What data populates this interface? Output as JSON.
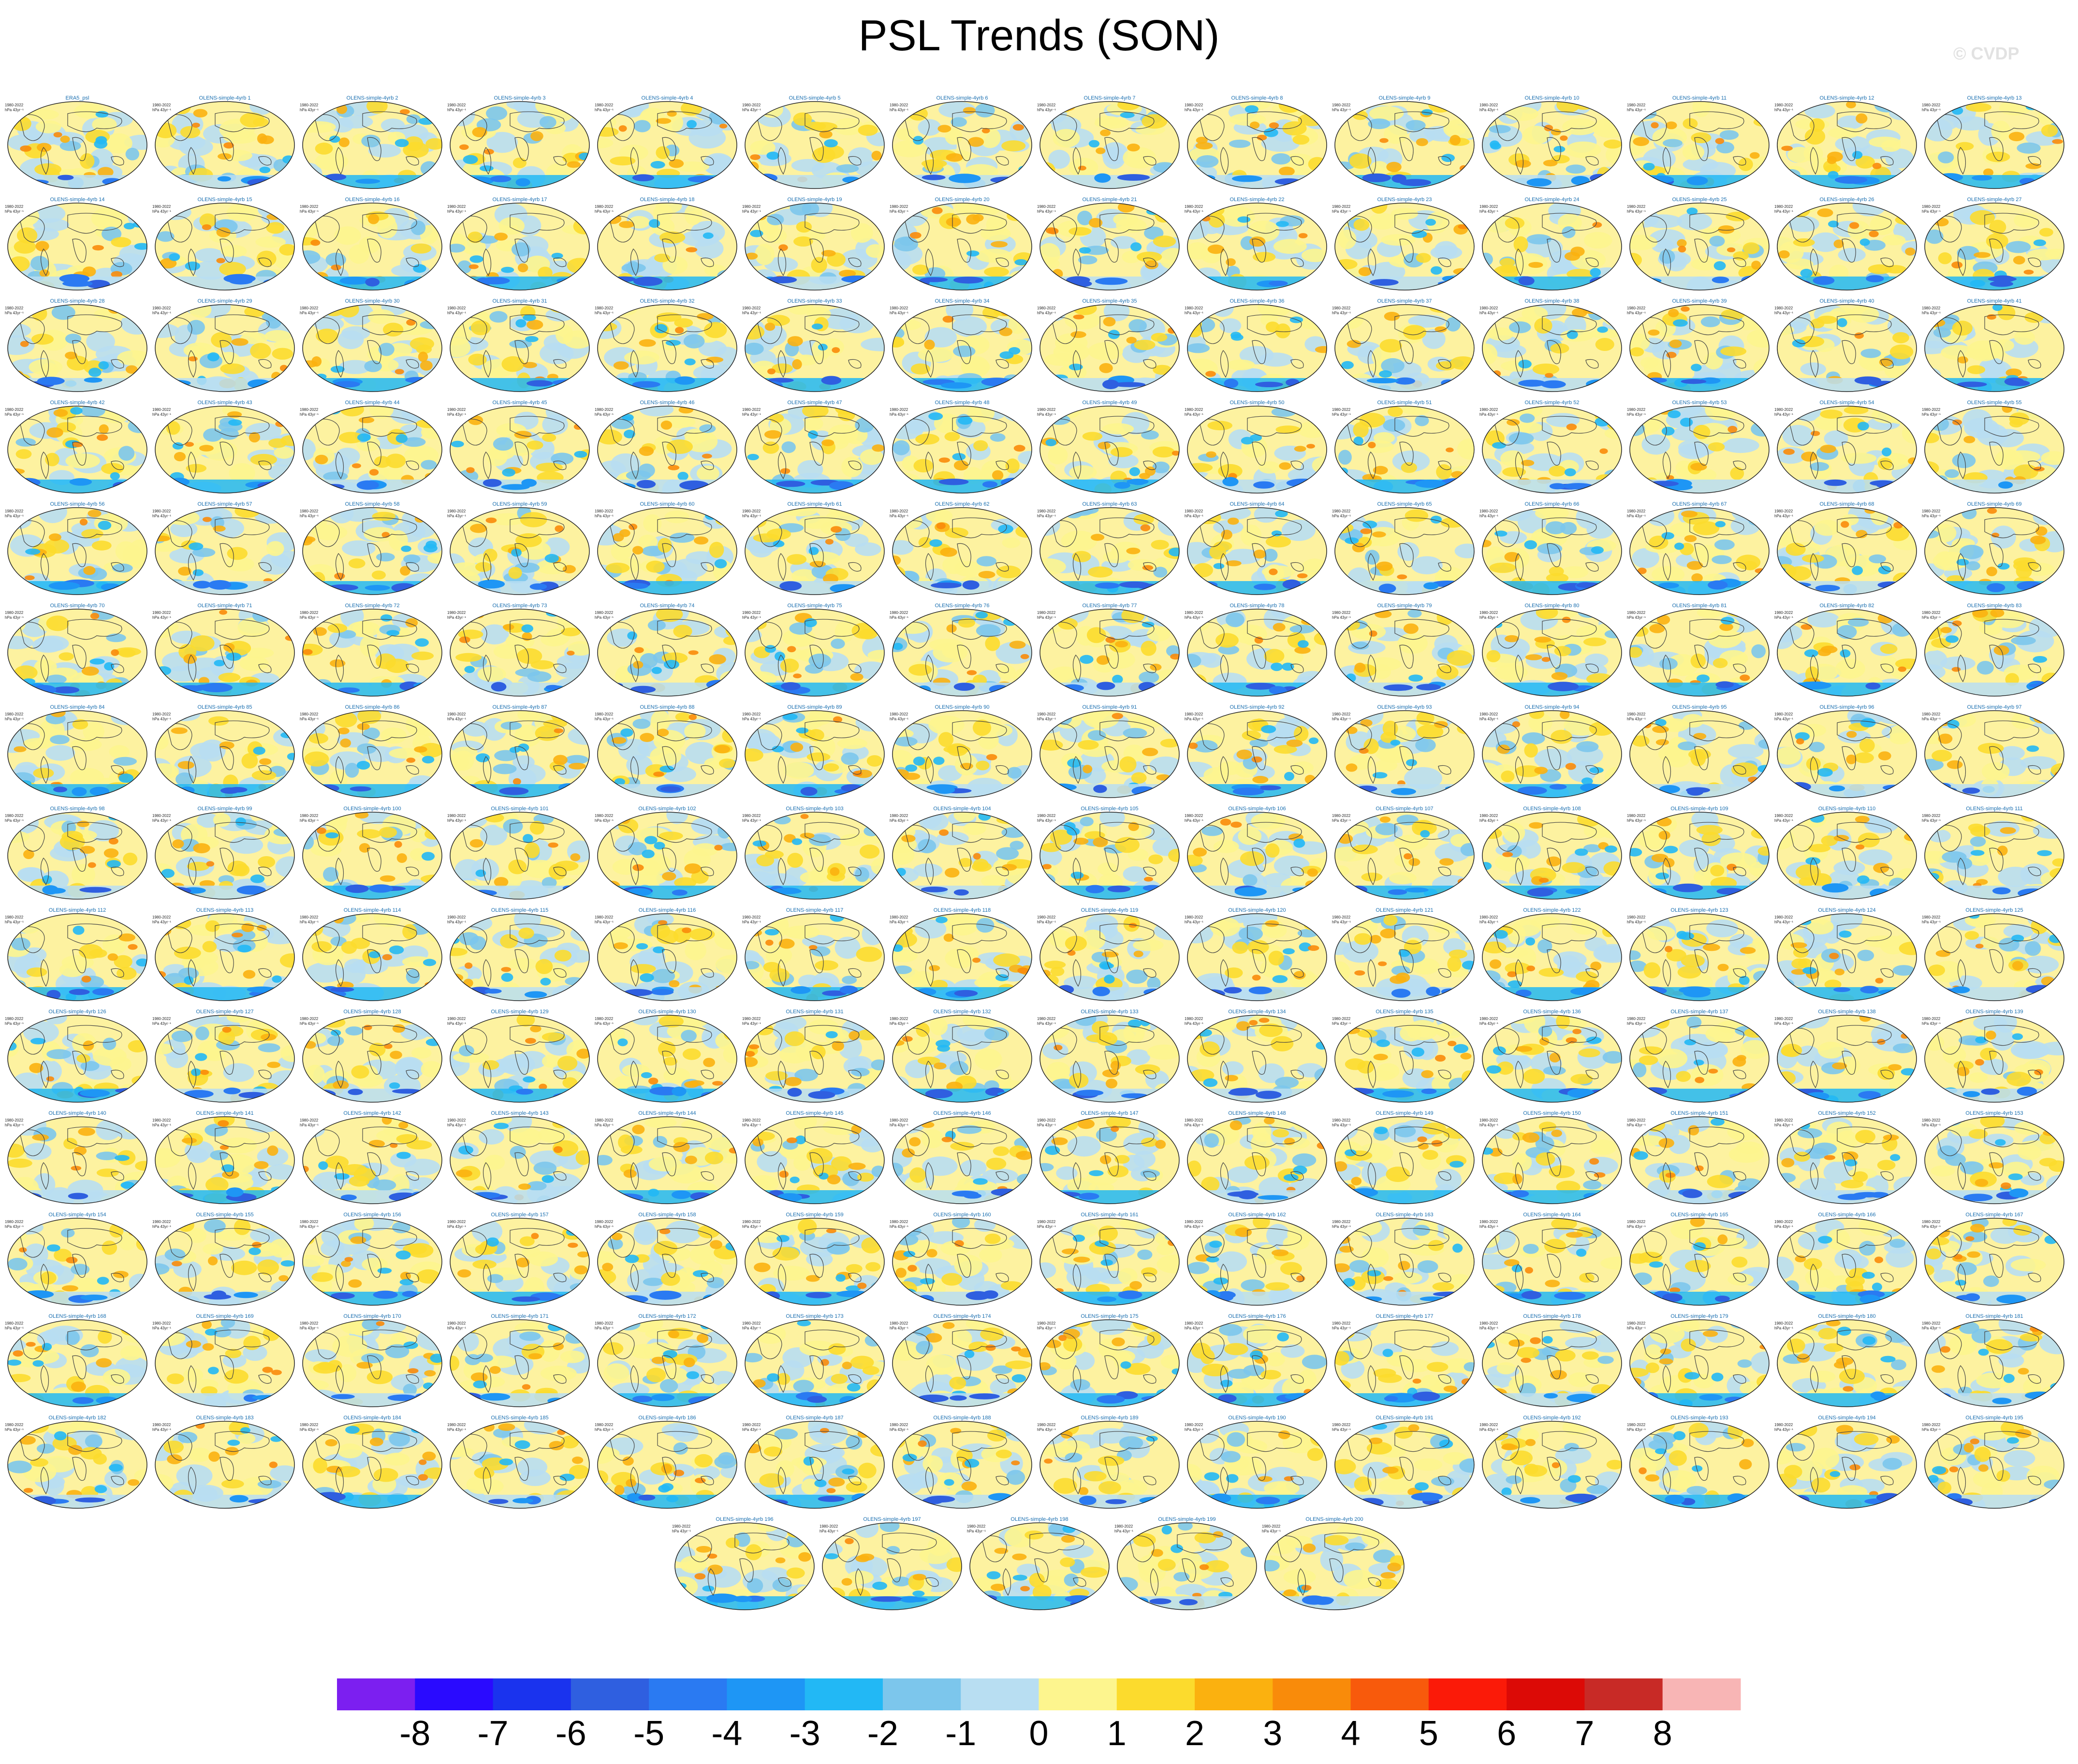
{
  "title": "PSL Trends (SON)",
  "watermark": "© CVDP",
  "chart_data": {
    "type": "heatmap",
    "title": "PSL Trends (SON)",
    "panel_count": 201,
    "panel_period": "1980-2022",
    "panel_units": "hPa 43yr⁻¹",
    "panels": [
      "ERA5_psl",
      "OLENS-simple-4yrb 1",
      "OLENS-simple-4yrb 2",
      "OLENS-simple-4yrb 3",
      "OLENS-simple-4yrb 4",
      "OLENS-simple-4yrb 5",
      "OLENS-simple-4yrb 6",
      "OLENS-simple-4yrb 7",
      "OLENS-simple-4yrb 8",
      "OLENS-simple-4yrb 9",
      "OLENS-simple-4yrb 10",
      "OLENS-simple-4yrb 11",
      "OLENS-simple-4yrb 12",
      "OLENS-simple-4yrb 13",
      "OLENS-simple-4yrb 14",
      "OLENS-simple-4yrb 15",
      "OLENS-simple-4yrb 16",
      "OLENS-simple-4yrb 17",
      "OLENS-simple-4yrb 18",
      "OLENS-simple-4yrb 19",
      "OLENS-simple-4yrb 20",
      "OLENS-simple-4yrb 21",
      "OLENS-simple-4yrb 22",
      "OLENS-simple-4yrb 23",
      "OLENS-simple-4yrb 24",
      "OLENS-simple-4yrb 25",
      "OLENS-simple-4yrb 26",
      "OLENS-simple-4yrb 27",
      "OLENS-simple-4yrb 28",
      "OLENS-simple-4yrb 29",
      "OLENS-simple-4yrb 30",
      "OLENS-simple-4yrb 31",
      "OLENS-simple-4yrb 32",
      "OLENS-simple-4yrb 33",
      "OLENS-simple-4yrb 34",
      "OLENS-simple-4yrb 35",
      "OLENS-simple-4yrb 36",
      "OLENS-simple-4yrb 37",
      "OLENS-simple-4yrb 38",
      "OLENS-simple-4yrb 39",
      "OLENS-simple-4yrb 40",
      "OLENS-simple-4yrb 41",
      "OLENS-simple-4yrb 42",
      "OLENS-simple-4yrb 43",
      "OLENS-simple-4yrb 44",
      "OLENS-simple-4yrb 45",
      "OLENS-simple-4yrb 46",
      "OLENS-simple-4yrb 47",
      "OLENS-simple-4yrb 48",
      "OLENS-simple-4yrb 49",
      "OLENS-simple-4yrb 50",
      "OLENS-simple-4yrb 51",
      "OLENS-simple-4yrb 52",
      "OLENS-simple-4yrb 53",
      "OLENS-simple-4yrb 54",
      "OLENS-simple-4yrb 55",
      "OLENS-simple-4yrb 56",
      "OLENS-simple-4yrb 57",
      "OLENS-simple-4yrb 58",
      "OLENS-simple-4yrb 59",
      "OLENS-simple-4yrb 60",
      "OLENS-simple-4yrb 61",
      "OLENS-simple-4yrb 62",
      "OLENS-simple-4yrb 63",
      "OLENS-simple-4yrb 64",
      "OLENS-simple-4yrb 65",
      "OLENS-simple-4yrb 66",
      "OLENS-simple-4yrb 67",
      "OLENS-simple-4yrb 68",
      "OLENS-simple-4yrb 69",
      "OLENS-simple-4yrb 70",
      "OLENS-simple-4yrb 71",
      "OLENS-simple-4yrb 72",
      "OLENS-simple-4yrb 73",
      "OLENS-simple-4yrb 74",
      "OLENS-simple-4yrb 75",
      "OLENS-simple-4yrb 76",
      "OLENS-simple-4yrb 77",
      "OLENS-simple-4yrb 78",
      "OLENS-simple-4yrb 79",
      "OLENS-simple-4yrb 80",
      "OLENS-simple-4yrb 81",
      "OLENS-simple-4yrb 82",
      "OLENS-simple-4yrb 83",
      "OLENS-simple-4yrb 84",
      "OLENS-simple-4yrb 85",
      "OLENS-simple-4yrb 86",
      "OLENS-simple-4yrb 87",
      "OLENS-simple-4yrb 88",
      "OLENS-simple-4yrb 89",
      "OLENS-simple-4yrb 90",
      "OLENS-simple-4yrb 91",
      "OLENS-simple-4yrb 92",
      "OLENS-simple-4yrb 93",
      "OLENS-simple-4yrb 94",
      "OLENS-simple-4yrb 95",
      "OLENS-simple-4yrb 96",
      "OLENS-simple-4yrb 97",
      "OLENS-simple-4yrb 98",
      "OLENS-simple-4yrb 99",
      "OLENS-simple-4yrb 100",
      "OLENS-simple-4yrb 101",
      "OLENS-simple-4yrb 102",
      "OLENS-simple-4yrb 103",
      "OLENS-simple-4yrb 104",
      "OLENS-simple-4yrb 105",
      "OLENS-simple-4yrb 106",
      "OLENS-simple-4yrb 107",
      "OLENS-simple-4yrb 108",
      "OLENS-simple-4yrb 109",
      "OLENS-simple-4yrb 110",
      "OLENS-simple-4yrb 111",
      "OLENS-simple-4yrb 112",
      "OLENS-simple-4yrb 113",
      "OLENS-simple-4yrb 114",
      "OLENS-simple-4yrb 115",
      "OLENS-simple-4yrb 116",
      "OLENS-simple-4yrb 117",
      "OLENS-simple-4yrb 118",
      "OLENS-simple-4yrb 119",
      "OLENS-simple-4yrb 120",
      "OLENS-simple-4yrb 121",
      "OLENS-simple-4yrb 122",
      "OLENS-simple-4yrb 123",
      "OLENS-simple-4yrb 124",
      "OLENS-simple-4yrb 125",
      "OLENS-simple-4yrb 126",
      "OLENS-simple-4yrb 127",
      "OLENS-simple-4yrb 128",
      "OLENS-simple-4yrb 129",
      "OLENS-simple-4yrb 130",
      "OLENS-simple-4yrb 131",
      "OLENS-simple-4yrb 132",
      "OLENS-simple-4yrb 133",
      "OLENS-simple-4yrb 134",
      "OLENS-simple-4yrb 135",
      "OLENS-simple-4yrb 136",
      "OLENS-simple-4yrb 137",
      "OLENS-simple-4yrb 138",
      "OLENS-simple-4yrb 139",
      "OLENS-simple-4yrb 140",
      "OLENS-simple-4yrb 141",
      "OLENS-simple-4yrb 142",
      "OLENS-simple-4yrb 143",
      "OLENS-simple-4yrb 144",
      "OLENS-simple-4yrb 145",
      "OLENS-simple-4yrb 146",
      "OLENS-simple-4yrb 147",
      "OLENS-simple-4yrb 148",
      "OLENS-simple-4yrb 149",
      "OLENS-simple-4yrb 150",
      "OLENS-simple-4yrb 151",
      "OLENS-simple-4yrb 152",
      "OLENS-simple-4yrb 153",
      "OLENS-simple-4yrb 154",
      "OLENS-simple-4yrb 155",
      "OLENS-simple-4yrb 156",
      "OLENS-simple-4yrb 157",
      "OLENS-simple-4yrb 158",
      "OLENS-simple-4yrb 159",
      "OLENS-simple-4yrb 160",
      "OLENS-simple-4yrb 161",
      "OLENS-simple-4yrb 162",
      "OLENS-simple-4yrb 163",
      "OLENS-simple-4yrb 164",
      "OLENS-simple-4yrb 165",
      "OLENS-simple-4yrb 166",
      "OLENS-simple-4yrb 167",
      "OLENS-simple-4yrb 168",
      "OLENS-simple-4yrb 169",
      "OLENS-simple-4yrb 170",
      "OLENS-simple-4yrb 171",
      "OLENS-simple-4yrb 172",
      "OLENS-simple-4yrb 173",
      "OLENS-simple-4yrb 174",
      "OLENS-simple-4yrb 175",
      "OLENS-simple-4yrb 176",
      "OLENS-simple-4yrb 177",
      "OLENS-simple-4yrb 178",
      "OLENS-simple-4yrb 179",
      "OLENS-simple-4yrb 180",
      "OLENS-simple-4yrb 181",
      "OLENS-simple-4yrb 182",
      "OLENS-simple-4yrb 183",
      "OLENS-simple-4yrb 184",
      "OLENS-simple-4yrb 185",
      "OLENS-simple-4yrb 186",
      "OLENS-simple-4yrb 187",
      "OLENS-simple-4yrb 188",
      "OLENS-simple-4yrb 189",
      "OLENS-simple-4yrb 190",
      "OLENS-simple-4yrb 191",
      "OLENS-simple-4yrb 192",
      "OLENS-simple-4yrb 193",
      "OLENS-simple-4yrb 194",
      "OLENS-simple-4yrb 195",
      "OLENS-simple-4yrb 196",
      "OLENS-simple-4yrb 197",
      "OLENS-simple-4yrb 198",
      "OLENS-simple-4yrb 199",
      "OLENS-simple-4yrb 200"
    ],
    "colorbar": {
      "labels": [
        "-8",
        "-7",
        "-6",
        "-5",
        "-4",
        "-3",
        "-2",
        "-1",
        "0",
        "1",
        "2",
        "3",
        "4",
        "5",
        "6",
        "7",
        "8"
      ],
      "colors": [
        "#7c1ff0",
        "#2a0aff",
        "#1a33ee",
        "#2f5fe0",
        "#2a7af2",
        "#1e96f5",
        "#22b8f5",
        "#7cc6ec",
        "#b8def2",
        "#fdf58e",
        "#fcdb2d",
        "#fbb10f",
        "#f98b0a",
        "#f85a0c",
        "#fb1a08",
        "#dc0a06",
        "#c82a26",
        "#f8b5b5"
      ]
    }
  }
}
